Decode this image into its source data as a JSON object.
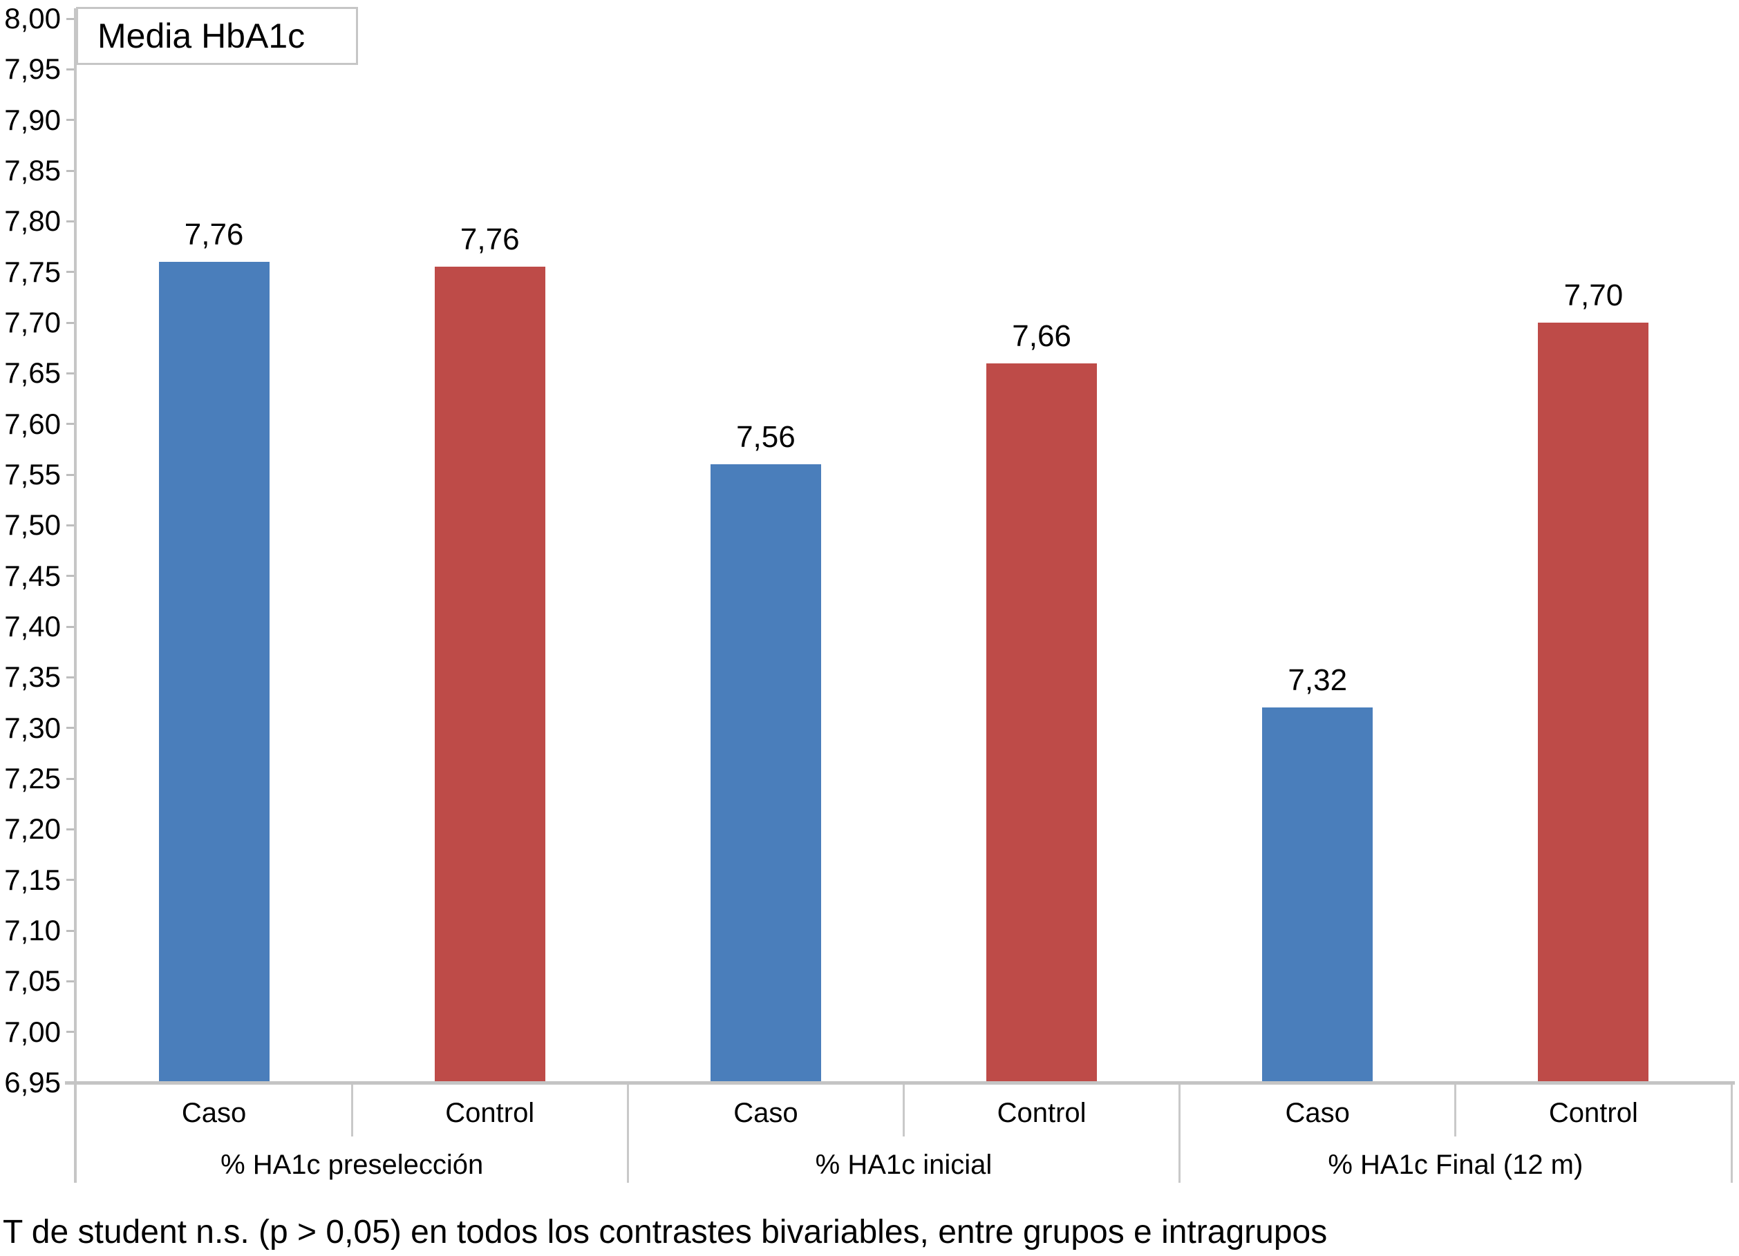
{
  "chart_data": {
    "type": "bar",
    "title": "Media HbA1c",
    "categories": [
      "% HA1c preselección",
      "% HA1c inicial",
      "% HA1c Final (12 m)"
    ],
    "sub_categories": [
      "Caso",
      "Control"
    ],
    "series": [
      {
        "name": "Caso",
        "color": "#4A7EBB",
        "values": [
          7.76,
          7.56,
          7.32
        ],
        "value_labels": [
          "7,76",
          "7,56",
          "7,32"
        ],
        "drawn_values": [
          7.76,
          7.56,
          7.32
        ]
      },
      {
        "name": "Control",
        "color": "#BE4B48",
        "values": [
          7.76,
          7.66,
          7.7
        ],
        "value_labels": [
          "7,76",
          "7,66",
          "7,70"
        ],
        "drawn_values": [
          7.755,
          7.66,
          7.7
        ]
      }
    ],
    "y_axis": {
      "min": 6.95,
      "max": 8.0,
      "step": 0.05,
      "tick_labels": [
        "8,00",
        "7,95",
        "7,90",
        "7,85",
        "7,80",
        "7,75",
        "7,70",
        "7,65",
        "7,60",
        "7,55",
        "7,50",
        "7,45",
        "7,40",
        "7,35",
        "7,30",
        "7,25",
        "7,20",
        "7,15",
        "7,10",
        "7,05",
        "7,00",
        "6,95"
      ]
    },
    "grid": false,
    "legend_position": "top-left",
    "axis_color": "#C6C6C6",
    "text_color": "#000000",
    "footnote": "T de student n.s. (p > 0,05) en todos los contrastes bivariables, entre grupos e intragrupos"
  }
}
